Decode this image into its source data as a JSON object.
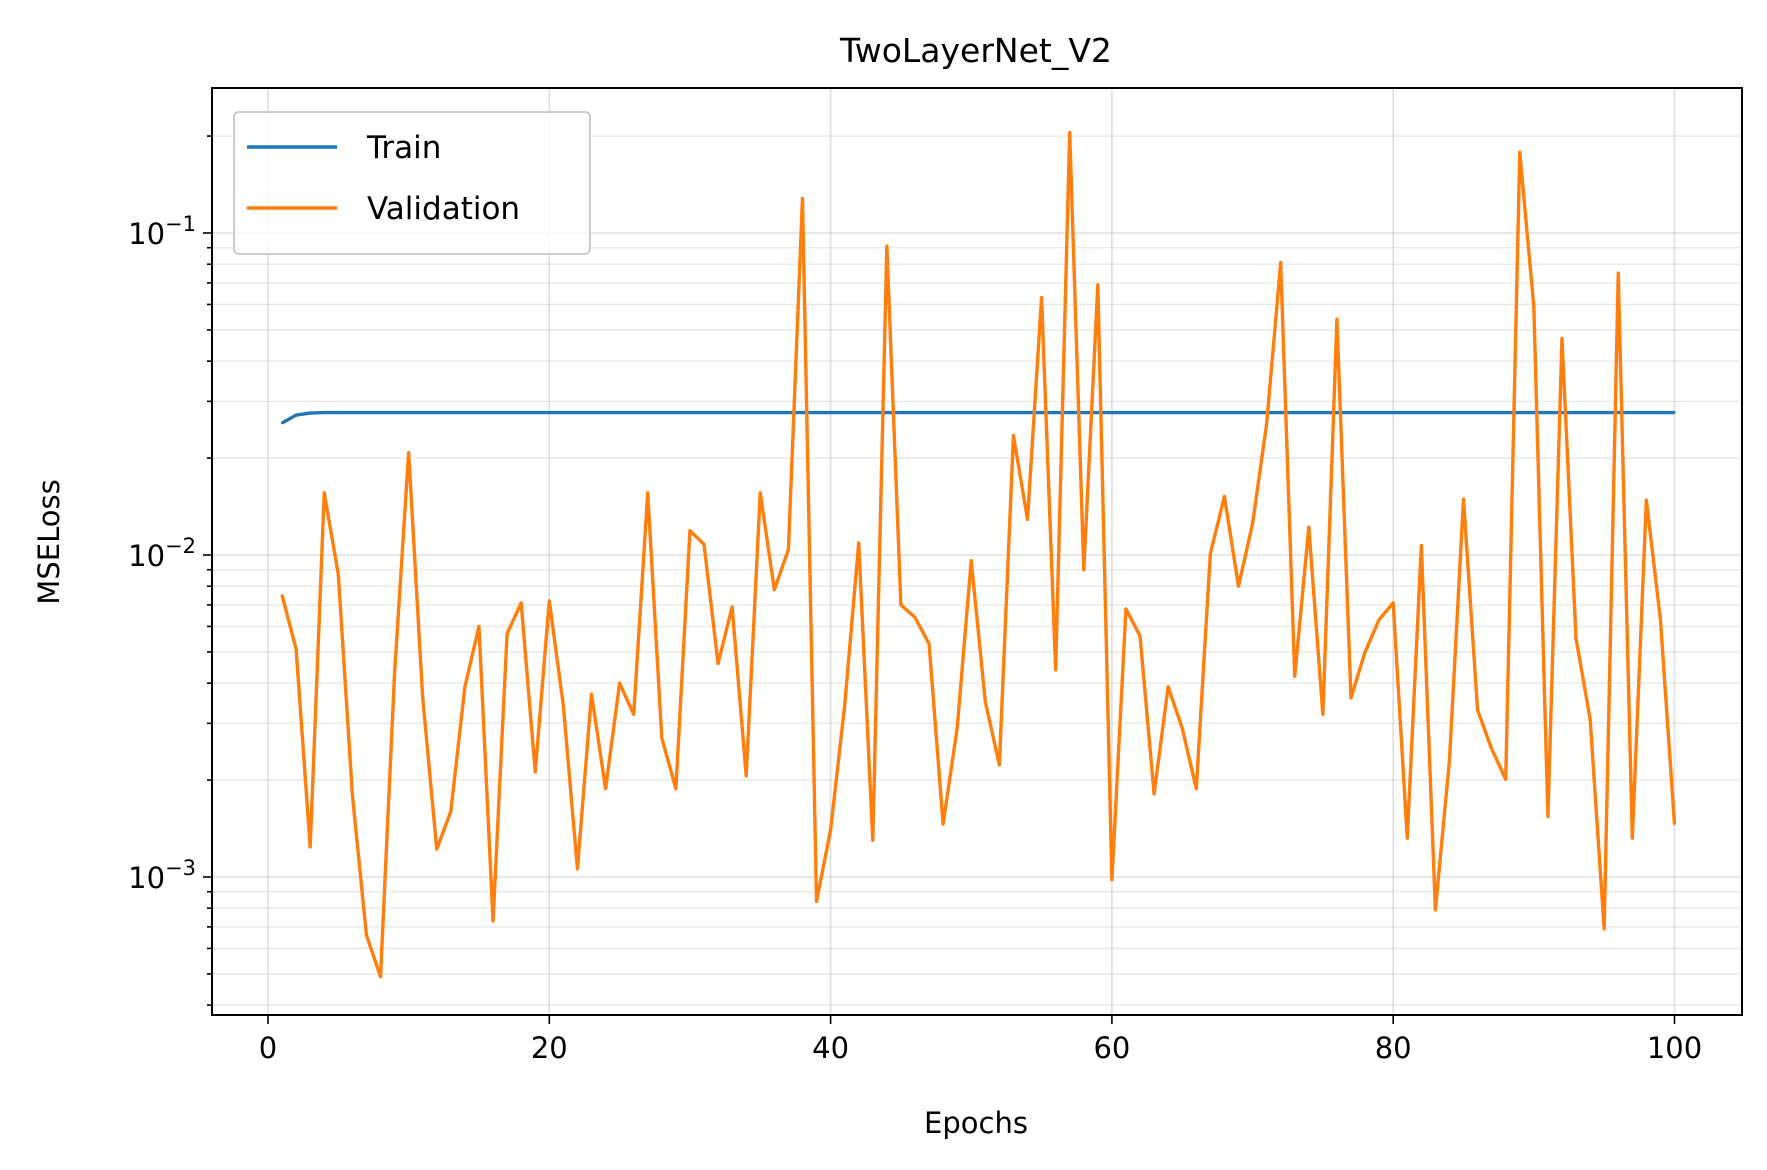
{
  "chart_data": {
    "type": "line",
    "title": "TwoLayerNet_V2",
    "xlabel": "Epochs",
    "ylabel": "MSELoss",
    "yscale": "log",
    "xlim": [
      -4,
      105
    ],
    "ylim": [
      0.00038,
      0.27
    ],
    "xticks": [
      0,
      20,
      40,
      60,
      80,
      100
    ],
    "yticks": [
      {
        "value": 0.001,
        "base": "10",
        "exp": "−3"
      },
      {
        "value": 0.01,
        "base": "10",
        "exp": "−2"
      },
      {
        "value": 0.1,
        "base": "10",
        "exp": "−1"
      }
    ],
    "grid": true,
    "legend_position": "upper-left",
    "series": [
      {
        "name": "Train",
        "color": "#1f77b4",
        "x": [
          1,
          2,
          3,
          4,
          5,
          6,
          7,
          8,
          9,
          10,
          11,
          12,
          13,
          14,
          15,
          16,
          17,
          18,
          19,
          20,
          21,
          22,
          23,
          24,
          25,
          26,
          27,
          28,
          29,
          30,
          31,
          32,
          33,
          34,
          35,
          36,
          37,
          38,
          39,
          40,
          41,
          42,
          43,
          44,
          45,
          46,
          47,
          48,
          49,
          50,
          51,
          52,
          53,
          54,
          55,
          56,
          57,
          58,
          59,
          60,
          61,
          62,
          63,
          64,
          65,
          66,
          67,
          68,
          69,
          70,
          71,
          72,
          73,
          74,
          75,
          76,
          77,
          78,
          79,
          80,
          81,
          82,
          83,
          84,
          85,
          86,
          87,
          88,
          89,
          90,
          91,
          92,
          93,
          94,
          95,
          96,
          97,
          98,
          99,
          100
        ],
        "y": [
          0.0257,
          0.0272,
          0.0276,
          0.0277,
          0.0277,
          0.0277,
          0.0277,
          0.0277,
          0.0277,
          0.0277,
          0.0277,
          0.0277,
          0.0277,
          0.0277,
          0.0277,
          0.0277,
          0.0277,
          0.0277,
          0.0277,
          0.0277,
          0.0277,
          0.0277,
          0.0277,
          0.0277,
          0.0277,
          0.0277,
          0.0277,
          0.0277,
          0.0277,
          0.0277,
          0.0277,
          0.0277,
          0.0277,
          0.0277,
          0.0277,
          0.0277,
          0.0277,
          0.0277,
          0.0277,
          0.0277,
          0.0277,
          0.0277,
          0.0277,
          0.0277,
          0.0277,
          0.0277,
          0.0277,
          0.0277,
          0.0277,
          0.0277,
          0.0277,
          0.0277,
          0.0277,
          0.0277,
          0.0277,
          0.0277,
          0.0277,
          0.0277,
          0.0277,
          0.0277,
          0.0277,
          0.0277,
          0.0277,
          0.0277,
          0.0277,
          0.0277,
          0.0277,
          0.0277,
          0.0277,
          0.0277,
          0.0277,
          0.0277,
          0.0277,
          0.0277,
          0.0277,
          0.0277,
          0.0277,
          0.0277,
          0.0277,
          0.0277,
          0.0277,
          0.0277,
          0.0277,
          0.0277,
          0.0277,
          0.0277,
          0.0277,
          0.0277,
          0.0277,
          0.0277,
          0.0277,
          0.0277,
          0.0277,
          0.0277,
          0.0277,
          0.0277,
          0.0277,
          0.0277,
          0.0277,
          0.0277
        ]
      },
      {
        "name": "Validation",
        "color": "#ff7f0e",
        "x": [
          1,
          2,
          3,
          4,
          5,
          6,
          7,
          8,
          9,
          10,
          11,
          12,
          13,
          14,
          15,
          16,
          17,
          18,
          19,
          20,
          21,
          22,
          23,
          24,
          25,
          26,
          27,
          28,
          29,
          30,
          31,
          32,
          33,
          34,
          35,
          36,
          37,
          38,
          39,
          40,
          41,
          42,
          43,
          44,
          45,
          46,
          47,
          48,
          49,
          50,
          51,
          52,
          53,
          54,
          55,
          56,
          57,
          58,
          59,
          60,
          61,
          62,
          63,
          64,
          65,
          66,
          67,
          68,
          69,
          70,
          71,
          72,
          73,
          74,
          75,
          76,
          77,
          78,
          79,
          80,
          81,
          82,
          83,
          84,
          85,
          86,
          87,
          88,
          89,
          90,
          91,
          92,
          93,
          94,
          95,
          96,
          97,
          98,
          99,
          100
        ],
        "y": [
          0.0075,
          0.0051,
          0.00124,
          0.0156,
          0.0087,
          0.0018,
          0.00066,
          0.00049,
          0.0043,
          0.0208,
          0.0036,
          0.00122,
          0.0016,
          0.0039,
          0.006,
          0.00073,
          0.0057,
          0.0071,
          0.00212,
          0.0072,
          0.0034,
          0.00106,
          0.0037,
          0.00188,
          0.004,
          0.0032,
          0.0156,
          0.0027,
          0.00188,
          0.0119,
          0.0108,
          0.0046,
          0.0069,
          0.00206,
          0.0156,
          0.0078,
          0.0104,
          0.128,
          0.00084,
          0.0014,
          0.0034,
          0.0109,
          0.0013,
          0.091,
          0.007,
          0.0064,
          0.0053,
          0.00146,
          0.0029,
          0.0096,
          0.0035,
          0.00223,
          0.0235,
          0.0129,
          0.063,
          0.0044,
          0.205,
          0.009,
          0.069,
          0.00098,
          0.0068,
          0.0056,
          0.00181,
          0.0039,
          0.0029,
          0.00188,
          0.0101,
          0.0152,
          0.008,
          0.0125,
          0.0255,
          0.081,
          0.0042,
          0.0122,
          0.0032,
          0.054,
          0.0036,
          0.005,
          0.0063,
          0.0071,
          0.00132,
          0.0107,
          0.00079,
          0.0023,
          0.0149,
          0.0033,
          0.0025,
          0.00201,
          0.178,
          0.059,
          0.00154,
          0.047,
          0.0055,
          0.0031,
          0.00069,
          0.075,
          0.00132,
          0.0148,
          0.0063,
          0.00146
        ]
      }
    ]
  }
}
